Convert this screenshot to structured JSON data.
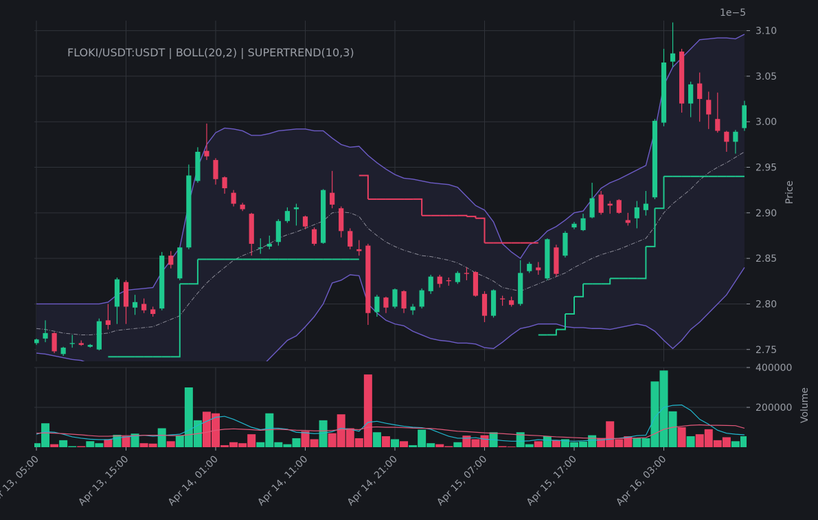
{
  "chart_data": {
    "type": "candlestick",
    "title": "FLOKI/USDT:USDT | BOLL(20,2) | SUPERTREND(10,3)",
    "offset_label": "1e−5",
    "y_label": "Price",
    "x": [
      "Apr 13, 05:00",
      "Apr 13, 06:00",
      "Apr 13, 07:00",
      "Apr 13, 08:00",
      "Apr 13, 09:00",
      "Apr 13, 10:00",
      "Apr 13, 11:00",
      "Apr 13, 12:00",
      "Apr 13, 13:00",
      "Apr 13, 14:00",
      "Apr 13, 15:00",
      "Apr 13, 16:00",
      "Apr 13, 17:00",
      "Apr 13, 18:00",
      "Apr 13, 19:00",
      "Apr 13, 20:00",
      "Apr 13, 21:00",
      "Apr 13, 22:00",
      "Apr 13, 23:00",
      "Apr 14, 00:00",
      "Apr 14, 01:00",
      "Apr 14, 02:00",
      "Apr 14, 03:00",
      "Apr 14, 04:00",
      "Apr 14, 05:00",
      "Apr 14, 06:00",
      "Apr 14, 07:00",
      "Apr 14, 08:00",
      "Apr 14, 09:00",
      "Apr 14, 10:00",
      "Apr 14, 11:00",
      "Apr 14, 12:00",
      "Apr 14, 13:00",
      "Apr 14, 14:00",
      "Apr 14, 15:00",
      "Apr 14, 16:00",
      "Apr 14, 17:00",
      "Apr 14, 18:00",
      "Apr 14, 19:00",
      "Apr 14, 20:00",
      "Apr 14, 21:00",
      "Apr 14, 22:00",
      "Apr 14, 23:00",
      "Apr 15, 00:00",
      "Apr 15, 01:00",
      "Apr 15, 02:00",
      "Apr 15, 03:00",
      "Apr 15, 04:00",
      "Apr 15, 05:00",
      "Apr 15, 06:00",
      "Apr 15, 07:00",
      "Apr 15, 08:00",
      "Apr 15, 09:00",
      "Apr 15, 10:00",
      "Apr 15, 11:00",
      "Apr 15, 12:00",
      "Apr 15, 13:00",
      "Apr 15, 14:00",
      "Apr 15, 15:00",
      "Apr 15, 16:00",
      "Apr 15, 17:00",
      "Apr 15, 18:00",
      "Apr 15, 19:00",
      "Apr 15, 20:00",
      "Apr 15, 21:00",
      "Apr 15, 22:00",
      "Apr 15, 23:00",
      "Apr 16, 00:00",
      "Apr 16, 01:00",
      "Apr 16, 02:00",
      "Apr 16, 03:00",
      "Apr 16, 04:00",
      "Apr 16, 05:00",
      "Apr 16, 06:00",
      "Apr 16, 07:00",
      "Apr 16, 08:00",
      "Apr 16, 09:00",
      "Apr 16, 10:00",
      "Apr 16, 11:00",
      "Apr 16, 12:00"
    ],
    "xtick_step": 10,
    "open": [
      2.757,
      2.762,
      2.768,
      2.745,
      2.756,
      2.757,
      2.753,
      2.75,
      2.782,
      2.797,
      2.824,
      2.796,
      2.8,
      2.794,
      2.795,
      2.853,
      2.828,
      2.862,
      2.935,
      2.968,
      2.958,
      2.939,
      2.922,
      2.909,
      2.899,
      2.861,
      2.863,
      2.868,
      2.891,
      2.904,
      2.896,
      2.882,
      2.867,
      2.922,
      2.905,
      2.88,
      2.86,
      2.864,
      2.791,
      2.807,
      2.797,
      2.814,
      2.793,
      2.797,
      2.814,
      2.83,
      2.826,
      2.824,
      2.834,
      2.835,
      2.811,
      2.787,
      2.806,
      2.804,
      2.8,
      2.836,
      2.84,
      2.828,
      2.862,
      2.853,
      2.884,
      2.881,
      2.895,
      2.92,
      2.91,
      2.914,
      2.892,
      2.894,
      2.903,
      2.917,
      2.999,
      3.066,
      3.077,
      3.02,
      3.042,
      3.024,
      3.003,
      2.989,
      2.978,
      2.993
    ],
    "high": [
      2.762,
      2.782,
      2.769,
      2.753,
      2.766,
      2.76,
      2.756,
      2.784,
      2.8,
      2.829,
      2.826,
      2.81,
      2.806,
      2.797,
      2.857,
      2.858,
      2.862,
      2.953,
      2.972,
      2.998,
      2.96,
      2.94,
      2.925,
      2.911,
      2.9,
      2.872,
      2.875,
      2.893,
      2.906,
      2.91,
      2.897,
      2.884,
      2.926,
      2.946,
      2.907,
      2.883,
      2.87,
      2.866,
      2.81,
      2.808,
      2.817,
      2.815,
      2.8,
      2.817,
      2.832,
      2.832,
      2.829,
      2.836,
      2.84,
      2.836,
      2.814,
      2.816,
      2.809,
      2.808,
      2.848,
      2.846,
      2.846,
      2.872,
      2.865,
      2.88,
      2.89,
      2.899,
      2.933,
      2.924,
      2.913,
      2.915,
      2.9,
      2.913,
      2.924,
      3.003,
      3.08,
      3.109,
      3.08,
      3.044,
      3.054,
      3.033,
      3.032,
      2.99,
      2.991,
      3.023
    ],
    "low": [
      2.755,
      2.758,
      2.746,
      2.743,
      2.752,
      2.754,
      2.752,
      2.749,
      2.772,
      2.778,
      2.778,
      2.788,
      2.79,
      2.786,
      2.793,
      2.839,
      2.826,
      2.86,
      2.933,
      2.958,
      2.931,
      2.921,
      2.907,
      2.902,
      2.853,
      2.855,
      2.86,
      2.864,
      2.889,
      2.886,
      2.882,
      2.864,
      2.866,
      2.905,
      2.873,
      2.86,
      2.853,
      2.777,
      2.786,
      2.79,
      2.795,
      2.79,
      2.788,
      2.795,
      2.811,
      2.818,
      2.82,
      2.822,
      2.826,
      2.808,
      2.78,
      2.785,
      2.798,
      2.797,
      2.798,
      2.834,
      2.832,
      2.826,
      2.83,
      2.851,
      2.882,
      2.88,
      2.894,
      2.898,
      2.899,
      2.899,
      2.886,
      2.883,
      2.897,
      2.915,
      2.995,
      3.06,
      3.01,
      3.005,
      3.0,
      2.992,
      2.988,
      2.967,
      2.965,
      2.99
    ],
    "close": [
      2.761,
      2.768,
      2.748,
      2.752,
      2.757,
      2.755,
      2.755,
      2.781,
      2.777,
      2.827,
      2.797,
      2.802,
      2.793,
      2.789,
      2.853,
      2.843,
      2.862,
      2.941,
      2.967,
      2.962,
      2.937,
      2.927,
      2.91,
      2.904,
      2.866,
      2.862,
      2.866,
      2.891,
      2.902,
      2.906,
      2.885,
      2.866,
      2.925,
      2.909,
      2.88,
      2.863,
      2.858,
      2.79,
      2.808,
      2.796,
      2.816,
      2.795,
      2.797,
      2.815,
      2.83,
      2.822,
      2.825,
      2.834,
      2.833,
      2.809,
      2.787,
      2.815,
      2.805,
      2.799,
      2.834,
      2.844,
      2.837,
      2.871,
      2.833,
      2.878,
      2.888,
      2.894,
      2.916,
      2.9,
      2.908,
      2.9,
      2.889,
      2.906,
      2.91,
      3.001,
      3.065,
      3.075,
      3.02,
      3.041,
      3.025,
      3.008,
      2.99,
      2.978,
      2.989,
      3.018
    ],
    "up_color": "#1fc98f",
    "down_color": "#ea3f62",
    "ylim": [
      2.737,
      3.111
    ],
    "yticks": [
      2.75,
      {
        "value": 2.8,
        "label": "2.80"
      },
      2.85,
      {
        "value": 2.9,
        "label": "2.90"
      },
      2.95,
      {
        "value": 3,
        "label": "3.00"
      },
      3.05,
      {
        "value": 3.1,
        "label": "3.10"
      }
    ],
    "grid": true,
    "bollinger": {
      "line_color": "#6d5cc8",
      "middle_color": "#8a8a96",
      "fill_color": "#1e1f2e",
      "upper": [
        2.8,
        2.8,
        2.8,
        2.8,
        2.8,
        2.8,
        2.8,
        2.8,
        2.802,
        2.81,
        2.815,
        2.816,
        2.817,
        2.818,
        2.835,
        2.848,
        2.862,
        2.91,
        2.95,
        2.975,
        2.988,
        2.993,
        2.992,
        2.99,
        2.985,
        2.985,
        2.987,
        2.99,
        2.991,
        2.992,
        2.992,
        2.99,
        2.99,
        2.982,
        2.975,
        2.972,
        2.973,
        2.963,
        2.955,
        2.948,
        2.942,
        2.938,
        2.937,
        2.935,
        2.933,
        2.932,
        2.931,
        2.928,
        2.918,
        2.908,
        2.903,
        2.89,
        2.866,
        2.857,
        2.85,
        2.865,
        2.87,
        2.88,
        2.885,
        2.892,
        2.9,
        2.902,
        2.915,
        2.927,
        2.933,
        2.937,
        2.942,
        2.947,
        2.952,
        2.99,
        3.04,
        3.06,
        3.07,
        3.08,
        3.09,
        3.091,
        3.092,
        3.092,
        3.091,
        3.096
      ],
      "middle": [
        2.773,
        2.772,
        2.77,
        2.768,
        2.767,
        2.766,
        2.766,
        2.767,
        2.768,
        2.771,
        2.772,
        2.773,
        2.774,
        2.775,
        2.779,
        2.783,
        2.787,
        2.8,
        2.812,
        2.823,
        2.832,
        2.84,
        2.848,
        2.853,
        2.857,
        2.861,
        2.866,
        2.872,
        2.876,
        2.879,
        2.883,
        2.887,
        2.891,
        2.9,
        2.901,
        2.9,
        2.896,
        2.883,
        2.875,
        2.868,
        2.863,
        2.859,
        2.856,
        2.853,
        2.852,
        2.85,
        2.848,
        2.845,
        2.84,
        2.834,
        2.83,
        2.825,
        2.818,
        2.816,
        2.814,
        2.818,
        2.822,
        2.826,
        2.83,
        2.834,
        2.84,
        2.845,
        2.85,
        2.854,
        2.857,
        2.86,
        2.864,
        2.868,
        2.872,
        2.885,
        2.9,
        2.91,
        2.918,
        2.926,
        2.936,
        2.944,
        2.95,
        2.955,
        2.961,
        2.967
      ],
      "lower": [
        2.746,
        2.745,
        2.743,
        2.741,
        2.739,
        2.738,
        2.734,
        2.73,
        2.727,
        2.722,
        2.716,
        2.713,
        2.711,
        2.709,
        2.703,
        2.697,
        2.69,
        2.66,
        2.65,
        2.655,
        2.668,
        2.68,
        2.695,
        2.708,
        2.72,
        2.73,
        2.74,
        2.75,
        2.76,
        2.765,
        2.775,
        2.786,
        2.8,
        2.823,
        2.826,
        2.832,
        2.831,
        2.8,
        2.79,
        2.782,
        2.778,
        2.776,
        2.77,
        2.766,
        2.762,
        2.76,
        2.759,
        2.757,
        2.757,
        2.756,
        2.752,
        2.751,
        2.758,
        2.766,
        2.773,
        2.775,
        2.778,
        2.778,
        2.778,
        2.775,
        2.774,
        2.774,
        2.773,
        2.773,
        2.772,
        2.774,
        2.776,
        2.778,
        2.776,
        2.77,
        2.76,
        2.751,
        2.76,
        2.772,
        2.78,
        2.79,
        2.8,
        2.81,
        2.825,
        2.84
      ]
    },
    "supertrend": [
      {
        "color": "#1fc98f",
        "values": [
          null,
          null,
          null,
          null,
          null,
          null,
          null,
          null,
          2.742,
          2.742,
          2.742,
          2.742,
          2.742,
          2.742,
          2.742,
          2.742,
          2.822,
          2.822,
          2.849,
          2.849,
          2.849,
          2.849,
          2.849,
          2.849,
          2.849,
          2.849,
          2.849,
          2.849,
          2.849,
          2.849,
          2.849,
          2.849,
          2.849,
          2.849,
          2.849,
          2.849,
          2.849,
          null,
          null,
          null,
          null,
          null,
          null,
          null,
          null,
          null,
          null,
          null,
          null,
          null,
          null,
          null,
          null,
          null,
          null,
          null,
          2.766,
          2.766,
          2.772,
          2.789,
          2.808,
          2.822,
          2.822,
          2.822,
          2.828,
          2.828,
          2.828,
          2.828,
          2.863,
          2.905,
          2.94,
          2.94,
          2.94,
          2.94,
          2.94,
          2.94,
          2.94,
          2.94,
          2.94,
          2.94
        ]
      },
      {
        "color": "#ea3f62",
        "values": [
          null,
          null,
          null,
          null,
          null,
          null,
          null,
          null,
          null,
          null,
          null,
          null,
          null,
          null,
          null,
          null,
          null,
          null,
          null,
          null,
          null,
          null,
          null,
          null,
          null,
          null,
          null,
          null,
          null,
          null,
          null,
          null,
          null,
          null,
          null,
          null,
          2.941,
          2.915,
          2.915,
          2.915,
          2.915,
          2.915,
          2.915,
          2.897,
          2.897,
          2.897,
          2.897,
          2.897,
          2.896,
          2.894,
          2.867,
          2.867,
          2.867,
          2.867,
          2.867,
          2.867,
          2.867,
          null,
          null,
          null,
          null,
          null,
          null,
          null,
          null,
          null,
          null,
          null,
          null,
          null,
          null,
          null,
          null,
          null,
          null,
          null,
          null,
          null,
          null,
          null
        ]
      }
    ],
    "volume": {
      "type": "bar",
      "label": "Volume",
      "values": [
        20000,
        120000,
        15000,
        35000,
        5000,
        5000,
        30000,
        20000,
        40000,
        62000,
        55000,
        68000,
        20000,
        18000,
        95000,
        30000,
        60000,
        300000,
        135000,
        178000,
        170000,
        10000,
        25000,
        20000,
        65000,
        25000,
        170000,
        25000,
        15000,
        45000,
        80000,
        40000,
        135000,
        70000,
        165000,
        95000,
        45000,
        365000,
        75000,
        55000,
        40000,
        30000,
        10000,
        88000,
        20000,
        15000,
        5000,
        25000,
        58000,
        40000,
        60000,
        75000,
        5000,
        3000,
        75000,
        15000,
        30000,
        55000,
        35000,
        40000,
        25000,
        28000,
        60000,
        45000,
        130000,
        40000,
        55000,
        45000,
        45000,
        330000,
        385000,
        180000,
        100000,
        55000,
        65000,
        90000,
        35000,
        50000,
        30000,
        55000
      ],
      "ylim": [
        0,
        400000
      ],
      "yticks": [
        200000,
        400000
      ],
      "lines": [
        {
          "color": "#22b8cf",
          "values": [
            65000,
            78000,
            75000,
            65000,
            52000,
            45000,
            40000,
            38000,
            38000,
            45000,
            52000,
            55000,
            60000,
            55000,
            58000,
            62000,
            65000,
            85000,
            110000,
            130000,
            150000,
            155000,
            140000,
            120000,
            100000,
            88000,
            95000,
            95000,
            90000,
            75000,
            72000,
            68000,
            70000,
            78000,
            95000,
            90000,
            80000,
            125000,
            130000,
            120000,
            112000,
            105000,
            100000,
            98000,
            90000,
            72000,
            55000,
            45000,
            45000,
            48000,
            40000,
            38000,
            33000,
            30000,
            30000,
            32000,
            38000,
            35000,
            35000,
            32000,
            30000,
            32000,
            35000,
            36000,
            40000,
            45000,
            50000,
            58000,
            60000,
            150000,
            200000,
            210000,
            212000,
            185000,
            140000,
            115000,
            85000,
            70000,
            65000,
            62000
          ]
        },
        {
          "color": "#e2587a",
          "values": [
            70000,
            72000,
            70000,
            68000,
            65000,
            62000,
            58000,
            55000,
            55000,
            57000,
            58000,
            58000,
            60000,
            60000,
            60000,
            58000,
            58000,
            62000,
            68000,
            75000,
            85000,
            90000,
            92000,
            90000,
            88000,
            85000,
            88000,
            90000,
            88000,
            85000,
            84000,
            82000,
            82000,
            84000,
            88000,
            90000,
            88000,
            100000,
            102000,
            100000,
            100000,
            98000,
            96000,
            95000,
            94000,
            90000,
            85000,
            80000,
            78000,
            75000,
            72000,
            70000,
            68000,
            65000,
            62000,
            60000,
            58000,
            55000,
            52000,
            50000,
            48000,
            46000,
            45000,
            44000,
            44000,
            44000,
            45000,
            46000,
            48000,
            68000,
            90000,
            100000,
            105000,
            110000,
            112000,
            110000,
            110000,
            109000,
            108000,
            95000
          ]
        }
      ]
    }
  }
}
